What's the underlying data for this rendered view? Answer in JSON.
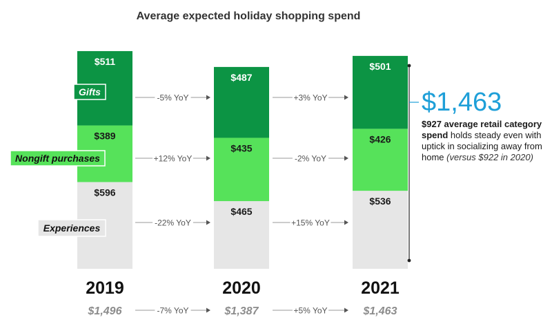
{
  "title": "Average expected holiday shopping spend",
  "colors": {
    "gifts": "#0c9444",
    "nongift": "#56e25a",
    "experiences": "#e6e6e6",
    "callout": "#1e9fd8",
    "text": "#1a1a1a",
    "yoy": "#555555"
  },
  "chart_data": {
    "type": "bar",
    "stacked": true,
    "title": "Average expected holiday shopping spend",
    "categories": [
      "2019",
      "2020",
      "2021"
    ],
    "series": [
      {
        "name": "Experiences",
        "values": [
          596,
          465,
          536
        ],
        "labels": [
          "$596",
          "$465",
          "$536"
        ],
        "color": "#e6e6e6"
      },
      {
        "name": "Nongift purchases",
        "values": [
          389,
          435,
          426
        ],
        "labels": [
          "$389",
          "$435",
          "$426"
        ],
        "color": "#56e25a"
      },
      {
        "name": "Gifts",
        "values": [
          511,
          487,
          501
        ],
        "labels": [
          "$511",
          "$487",
          "$501"
        ],
        "color": "#0c9444"
      }
    ],
    "totals": [
      "$1,496",
      "$1,387",
      "$1,463"
    ],
    "total_values": [
      1496,
      1387,
      1463
    ],
    "yoy_by_series": {
      "Gifts": [
        "-5% YoY",
        "+3% YoY"
      ],
      "Nongift purchases": [
        "+12% YoY",
        "-2% YoY"
      ],
      "Experiences": [
        "-22% YoY",
        "+15% YoY"
      ]
    },
    "yoy_totals": [
      "-7% YoY",
      "+5% YoY"
    ],
    "legend": "inline labels on left",
    "grid": false
  },
  "callout": {
    "total": "$1,463",
    "bold_text": "$927 average retail category spend",
    "text": " holds steady even with uptick in socializing away from home",
    "italic_text": "(versus $922 in 2020)"
  }
}
